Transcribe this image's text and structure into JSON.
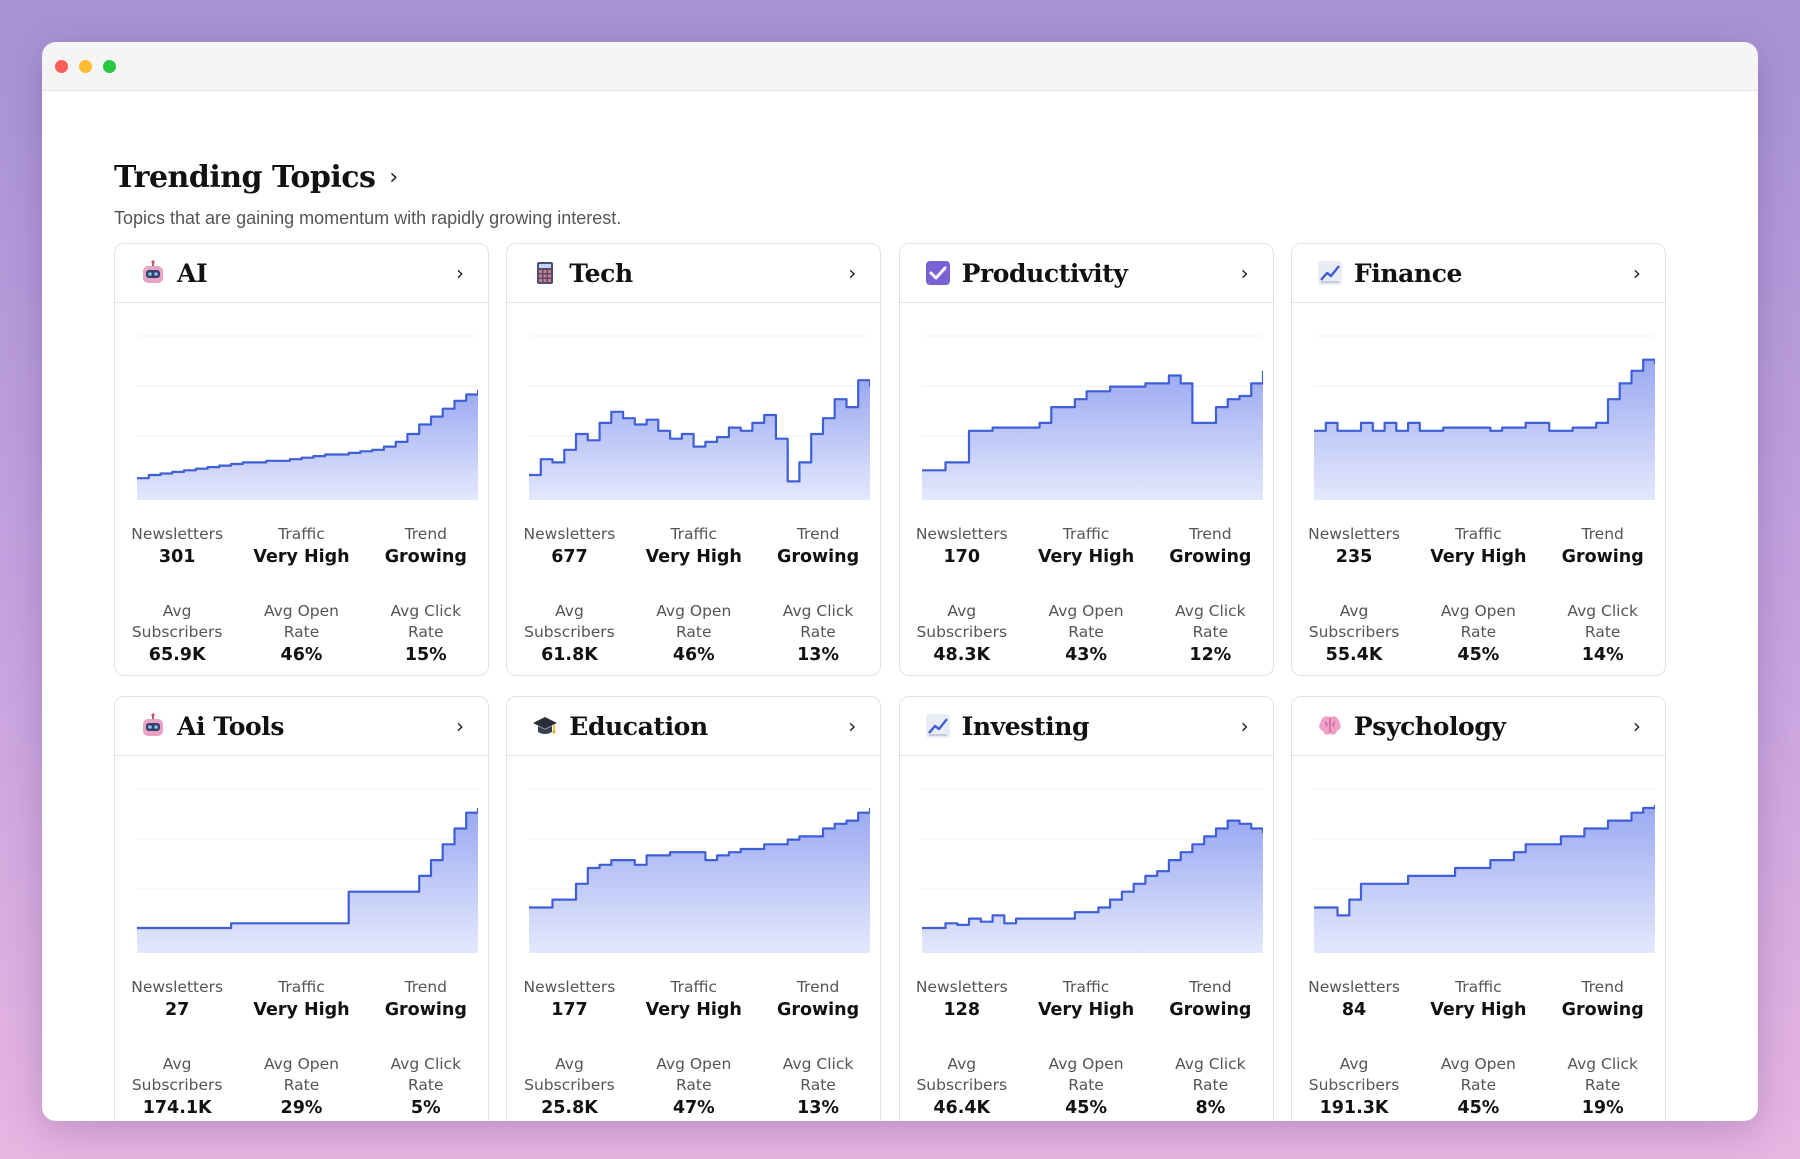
{
  "header": {
    "title": "Trending Topics",
    "subtitle": "Topics that are gaining momentum with rapidly growing interest."
  },
  "labels": {
    "newsletters": "Newsletters",
    "traffic": "Traffic",
    "trend": "Trend",
    "avg_subscribers": "Avg\nSubscribers",
    "avg_open_rate": "Avg Open\nRate",
    "avg_click_rate": "Avg Click\nRate"
  },
  "colors": {
    "line": "#3f5fd6",
    "fill_top": "#9aa9f2",
    "fill_bottom": "#e4e8fc"
  },
  "topics": [
    {
      "name": "AI",
      "icon": "robot-icon",
      "newsletters": "301",
      "traffic": "Very High",
      "trend": "Growing",
      "avg_subscribers": "65.9K",
      "avg_open_rate": "46%",
      "avg_click_rate": "15%",
      "chart_data": {
        "type": "area",
        "y": [
          10,
          12,
          13,
          14,
          15,
          16,
          17,
          18,
          19,
          20,
          20,
          21,
          21,
          22,
          23,
          24,
          25,
          25,
          26,
          27,
          28,
          30,
          33,
          38,
          44,
          49,
          54,
          59,
          63,
          66
        ]
      }
    },
    {
      "name": "Tech",
      "icon": "calculator-icon",
      "newsletters": "677",
      "traffic": "Very High",
      "trend": "Growing",
      "avg_subscribers": "61.8K",
      "avg_open_rate": "46%",
      "avg_click_rate": "13%",
      "chart_data": {
        "type": "area",
        "y": [
          12,
          22,
          20,
          28,
          38,
          34,
          45,
          52,
          48,
          44,
          47,
          40,
          35,
          38,
          30,
          33,
          36,
          42,
          40,
          45,
          50,
          35,
          8,
          20,
          38,
          48,
          60,
          55,
          72,
          68
        ]
      }
    },
    {
      "name": "Productivity",
      "icon": "check-box-icon",
      "newsletters": "170",
      "traffic": "Very High",
      "trend": "Growing",
      "avg_subscribers": "48.3K",
      "avg_open_rate": "43%",
      "avg_click_rate": "12%",
      "chart_data": {
        "type": "area",
        "y": [
          15,
          15,
          20,
          20,
          40,
          40,
          42,
          42,
          42,
          42,
          45,
          55,
          55,
          60,
          65,
          65,
          68,
          68,
          68,
          70,
          70,
          75,
          70,
          45,
          45,
          55,
          60,
          62,
          70,
          78
        ]
      }
    },
    {
      "name": "Finance",
      "icon": "chart-up-icon",
      "newsletters": "235",
      "traffic": "Very High",
      "trend": "Growing",
      "avg_subscribers": "55.4K",
      "avg_open_rate": "45%",
      "avg_click_rate": "14%",
      "chart_data": {
        "type": "area",
        "y": [
          40,
          45,
          40,
          40,
          45,
          40,
          45,
          40,
          45,
          40,
          40,
          42,
          42,
          42,
          42,
          40,
          42,
          42,
          45,
          45,
          40,
          40,
          42,
          42,
          45,
          60,
          70,
          78,
          85,
          82
        ]
      }
    },
    {
      "name": "Ai Tools",
      "icon": "robot-icon",
      "newsletters": "27",
      "traffic": "Very High",
      "trend": "Growing",
      "avg_subscribers": "174.1K",
      "avg_open_rate": "29%",
      "avg_click_rate": "5%",
      "chart_data": {
        "type": "area",
        "y": [
          12,
          12,
          12,
          12,
          12,
          12,
          12,
          12,
          15,
          15,
          15,
          15,
          15,
          15,
          15,
          15,
          15,
          15,
          35,
          35,
          35,
          35,
          35,
          35,
          45,
          55,
          65,
          75,
          85,
          88
        ]
      }
    },
    {
      "name": "Education",
      "icon": "graduation-cap-icon",
      "newsletters": "177",
      "traffic": "Very High",
      "trend": "Growing",
      "avg_subscribers": "25.8K",
      "avg_open_rate": "47%",
      "avg_click_rate": "13%",
      "chart_data": {
        "type": "area",
        "y": [
          25,
          25,
          30,
          30,
          40,
          50,
          52,
          55,
          55,
          52,
          58,
          58,
          60,
          60,
          60,
          55,
          58,
          60,
          62,
          62,
          65,
          65,
          68,
          70,
          70,
          75,
          78,
          80,
          85,
          88
        ]
      }
    },
    {
      "name": "Investing",
      "icon": "chart-up-icon",
      "newsletters": "128",
      "traffic": "Very High",
      "trend": "Growing",
      "avg_subscribers": "46.4K",
      "avg_open_rate": "45%",
      "avg_click_rate": "8%",
      "chart_data": {
        "type": "area",
        "y": [
          12,
          12,
          15,
          14,
          18,
          16,
          20,
          15,
          18,
          18,
          18,
          18,
          18,
          22,
          22,
          25,
          30,
          35,
          40,
          45,
          48,
          55,
          60,
          65,
          70,
          75,
          80,
          78,
          75,
          72
        ]
      }
    },
    {
      "name": "Psychology",
      "icon": "brain-icon",
      "newsletters": "84",
      "traffic": "Very High",
      "trend": "Growing",
      "avg_subscribers": "191.3K",
      "avg_open_rate": "45%",
      "avg_click_rate": "19%",
      "chart_data": {
        "type": "area",
        "y": [
          25,
          25,
          20,
          30,
          40,
          40,
          40,
          40,
          45,
          45,
          45,
          45,
          50,
          50,
          50,
          55,
          55,
          60,
          65,
          65,
          65,
          70,
          70,
          75,
          75,
          80,
          80,
          85,
          88,
          90
        ]
      }
    }
  ]
}
